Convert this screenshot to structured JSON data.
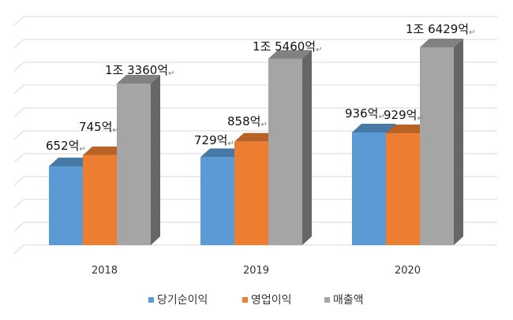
{
  "chart_data": {
    "type": "bar",
    "style": "3d-clustered-column",
    "categories": [
      "2018",
      "2019",
      "2020"
    ],
    "series": [
      {
        "name": "당기순이익",
        "color": "#5B9BD5",
        "values": [
          652,
          729,
          936
        ],
        "labels": [
          "652억",
          "729억",
          "936억"
        ]
      },
      {
        "name": "영업이익",
        "color": "#ED7D31",
        "values": [
          745,
          858,
          929
        ],
        "labels": [
          "745억",
          "858억",
          "929억"
        ]
      },
      {
        "name": "매출액",
        "color": "#A5A5A5",
        "values": [
          13360,
          15460,
          16429
        ],
        "labels": [
          "1조  3360억",
          "1조  5460억",
          "1조  6429억"
        ]
      }
    ],
    "label_return_mark": "↵",
    "legend_position": "bottom",
    "grid": true,
    "y_axis_labels_visible": false
  }
}
